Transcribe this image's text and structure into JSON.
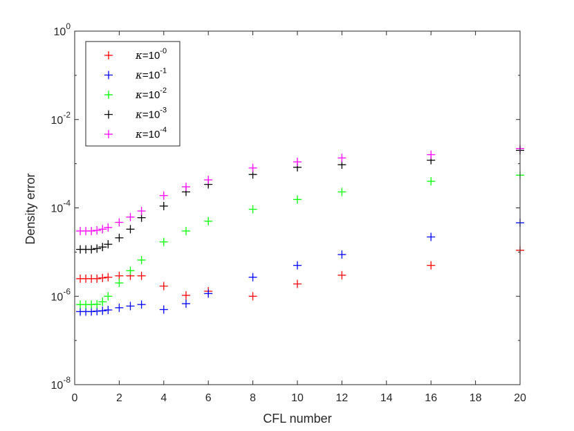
{
  "chart_data": {
    "type": "scatter",
    "xlabel": "CFL number",
    "ylabel": "Density error",
    "xlim": [
      0,
      20
    ],
    "ylim": [
      1e-08,
      1
    ],
    "yscale": "log",
    "xticks": [
      0,
      2,
      4,
      6,
      8,
      10,
      12,
      14,
      16,
      18,
      20
    ],
    "yticks": [
      {
        "value": 1e-08,
        "base": "10",
        "exp": "-8"
      },
      {
        "value": 1e-06,
        "base": "10",
        "exp": "-6"
      },
      {
        "value": 0.0001,
        "base": "10",
        "exp": "-4"
      },
      {
        "value": 0.01,
        "base": "10",
        "exp": "-2"
      },
      {
        "value": 1,
        "base": "10",
        "exp": "0"
      }
    ],
    "legend_position": "top-left",
    "series": [
      {
        "name": "κ=10-0",
        "symbol": "κ",
        "base": "=10",
        "exp": "-0",
        "color": "#ff0000",
        "points": [
          [
            0.25,
            2.5e-06
          ],
          [
            0.5,
            2.5e-06
          ],
          [
            0.75,
            2.5e-06
          ],
          [
            1.0,
            2.5e-06
          ],
          [
            1.25,
            2.6e-06
          ],
          [
            1.5,
            2.7e-06
          ],
          [
            2,
            2.9e-06
          ],
          [
            2.5,
            2.9e-06
          ],
          [
            3,
            2.9e-06
          ],
          [
            4,
            1.7e-06
          ],
          [
            5,
            1.05e-06
          ],
          [
            6,
            1.3e-06
          ],
          [
            8,
            1e-06
          ],
          [
            10,
            1.9e-06
          ],
          [
            12,
            3e-06
          ],
          [
            16,
            5e-06
          ],
          [
            20,
            1.1e-05
          ]
        ]
      },
      {
        "name": "κ=10-1",
        "symbol": "κ",
        "base": "=10",
        "exp": "-1",
        "color": "#0000ff",
        "points": [
          [
            0.25,
            4.5e-07
          ],
          [
            0.5,
            4.5e-07
          ],
          [
            0.75,
            4.5e-07
          ],
          [
            1.0,
            4.6e-07
          ],
          [
            1.25,
            4.7e-07
          ],
          [
            1.5,
            4.9e-07
          ],
          [
            2,
            5.5e-07
          ],
          [
            2.5,
            6e-07
          ],
          [
            3,
            6.5e-07
          ],
          [
            4,
            5e-07
          ],
          [
            5,
            6.8e-07
          ],
          [
            6,
            1.15e-06
          ],
          [
            8,
            2.7e-06
          ],
          [
            10,
            5e-06
          ],
          [
            12,
            8.8e-06
          ],
          [
            16,
            2.2e-05
          ],
          [
            20,
            4.6e-05
          ]
        ]
      },
      {
        "name": "κ=10-2",
        "symbol": "κ",
        "base": "=10",
        "exp": "-2",
        "color": "#00ff00",
        "points": [
          [
            0.25,
            6.5e-07
          ],
          [
            0.5,
            6.5e-07
          ],
          [
            0.75,
            6.5e-07
          ],
          [
            1.0,
            6.6e-07
          ],
          [
            1.25,
            7.5e-07
          ],
          [
            1.5,
            1e-06
          ],
          [
            2,
            2e-06
          ],
          [
            2.5,
            3.8e-06
          ],
          [
            3,
            6.6e-06
          ],
          [
            4,
            1.7e-05
          ],
          [
            5,
            3e-05
          ],
          [
            6,
            5e-05
          ],
          [
            8,
            9.3e-05
          ],
          [
            10,
            0.000155
          ],
          [
            12,
            0.00023
          ],
          [
            16,
            0.0004
          ],
          [
            20,
            0.00055
          ]
        ]
      },
      {
        "name": "κ=10-3",
        "symbol": "κ",
        "base": "=10",
        "exp": "-3",
        "color": "#000000",
        "points": [
          [
            0.25,
            1.15e-05
          ],
          [
            0.5,
            1.15e-05
          ],
          [
            0.75,
            1.15e-05
          ],
          [
            1.0,
            1.2e-05
          ],
          [
            1.25,
            1.3e-05
          ],
          [
            1.5,
            1.5e-05
          ],
          [
            2,
            2.1e-05
          ],
          [
            2.5,
            3.3e-05
          ],
          [
            3,
            6e-05
          ],
          [
            4,
            0.00011
          ],
          [
            5,
            0.00023
          ],
          [
            6,
            0.00034
          ],
          [
            8,
            0.00057
          ],
          [
            10,
            0.00083
          ],
          [
            12,
            0.00095
          ],
          [
            16,
            0.0012
          ],
          [
            20,
            0.002
          ]
        ]
      },
      {
        "name": "κ=10-4",
        "symbol": "κ",
        "base": "=10",
        "exp": "-4",
        "color": "#ff00ff",
        "points": [
          [
            0.25,
            3e-05
          ],
          [
            0.5,
            3e-05
          ],
          [
            0.75,
            3e-05
          ],
          [
            1.0,
            3.1e-05
          ],
          [
            1.25,
            3.3e-05
          ],
          [
            1.5,
            3.6e-05
          ],
          [
            2,
            4.7e-05
          ],
          [
            2.5,
            6.2e-05
          ],
          [
            3,
            8.5e-05
          ],
          [
            4,
            0.00019
          ],
          [
            5,
            0.0003
          ],
          [
            6,
            0.00043
          ],
          [
            8,
            0.0008
          ],
          [
            10,
            0.0011
          ],
          [
            12,
            0.00135
          ],
          [
            16,
            0.0016
          ],
          [
            20,
            0.0022
          ]
        ]
      }
    ]
  }
}
